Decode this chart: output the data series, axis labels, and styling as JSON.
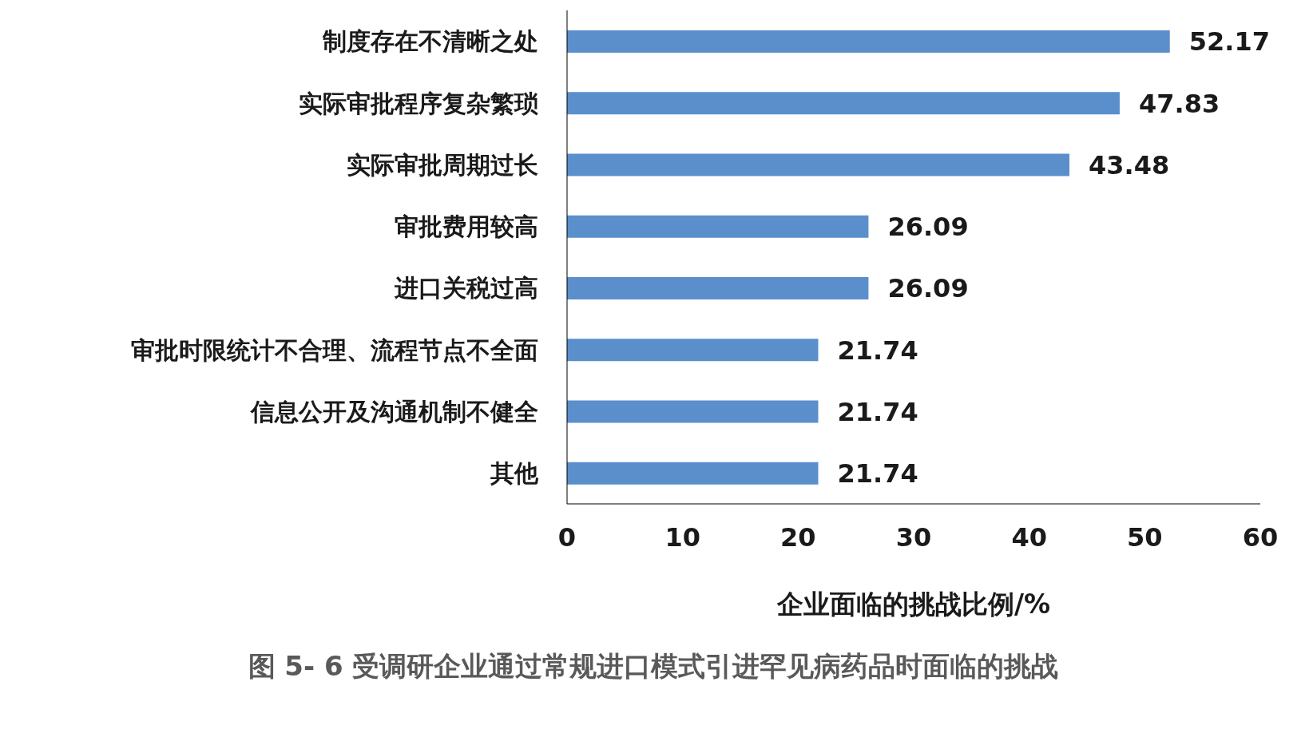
{
  "chart_data": {
    "type": "bar",
    "orientation": "horizontal",
    "title": "图 5- 6 受调研企业通过常规进口模式引进罕见病药品时面临的挑战",
    "xlabel": "企业面临的挑战比例/%",
    "categories": [
      "制度存在不清晰之处",
      "实际审批程序复杂繁琐",
      "实际审批周期过长",
      "审批费用较高",
      "进口关税过高",
      "审批时限统计不合理、流程节点不全面",
      "信息公开及沟通机制不健全",
      "其他"
    ],
    "values": [
      52.17,
      47.83,
      43.48,
      26.09,
      26.09,
      21.74,
      21.74,
      21.74
    ],
    "color": "#5b8fcb",
    "xlim": [
      0,
      60
    ],
    "xticks": [
      0,
      10,
      20,
      30,
      40,
      50,
      60
    ],
    "grid": false,
    "legend": false,
    "data_labels": true
  }
}
